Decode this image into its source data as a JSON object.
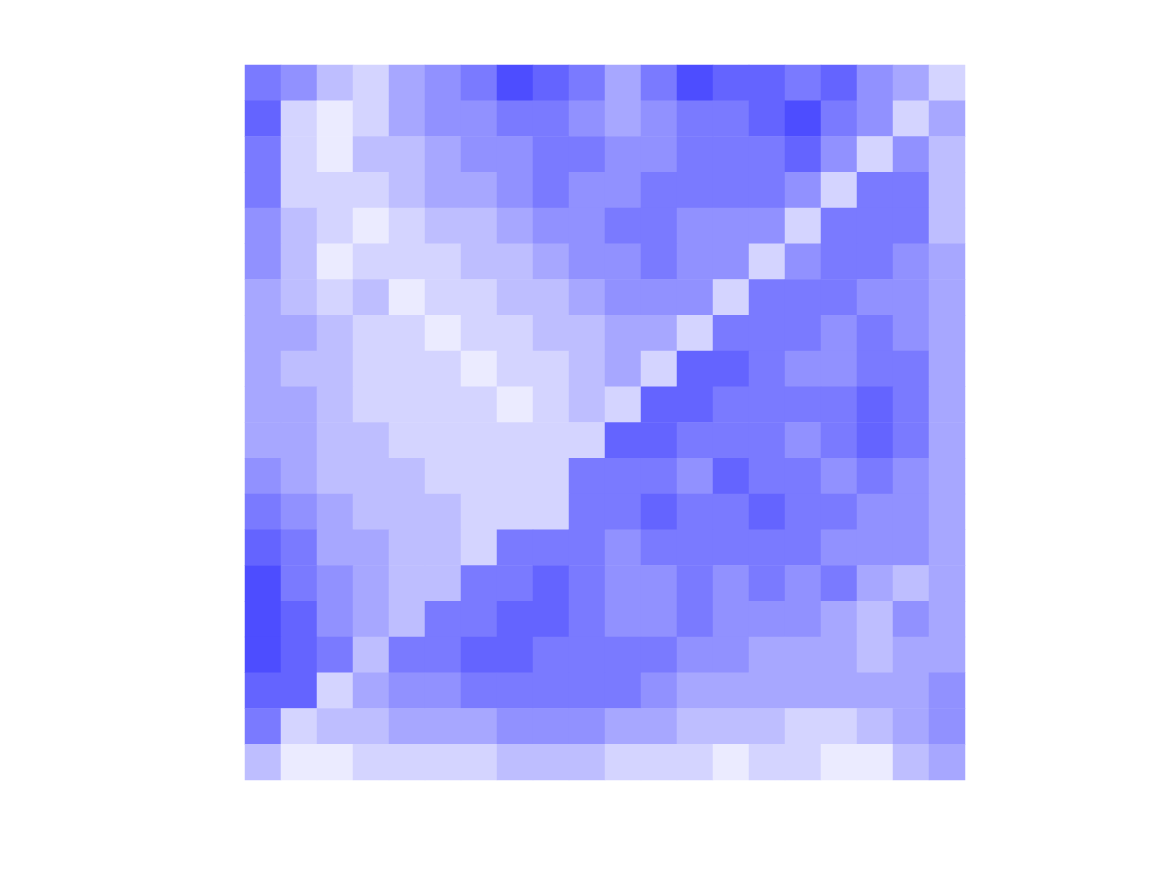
{
  "chart_data": {
    "type": "heatmap",
    "color": "#4d4dff",
    "tick_labels": false,
    "cells": [
      [
        6,
        5,
        3,
        2,
        4,
        5,
        6,
        8,
        7,
        6,
        4,
        6,
        8,
        7,
        7,
        6,
        7,
        5,
        4,
        2
      ],
      [
        7,
        2,
        1,
        2,
        4,
        5,
        5,
        6,
        6,
        5,
        4,
        5,
        6,
        6,
        7,
        8,
        6,
        5,
        2,
        4
      ],
      [
        6,
        2,
        1,
        3,
        3,
        4,
        5,
        5,
        6,
        6,
        5,
        5,
        6,
        6,
        6,
        7,
        5,
        2,
        5,
        3
      ],
      [
        6,
        2,
        2,
        2,
        3,
        4,
        4,
        5,
        6,
        5,
        5,
        6,
        6,
        6,
        6,
        5,
        2,
        6,
        6,
        3
      ],
      [
        5,
        3,
        2,
        1,
        2,
        3,
        3,
        4,
        5,
        5,
        6,
        6,
        5,
        5,
        5,
        2,
        6,
        6,
        6,
        3
      ],
      [
        5,
        3,
        1,
        2,
        2,
        2,
        3,
        3,
        4,
        5,
        5,
        6,
        5,
        5,
        2,
        5,
        6,
        6,
        5,
        4
      ],
      [
        4,
        3,
        2,
        3,
        1,
        2,
        2,
        3,
        3,
        4,
        5,
        5,
        5,
        2,
        6,
        6,
        6,
        5,
        5,
        4
      ],
      [
        4,
        4,
        3,
        2,
        2,
        1,
        2,
        2,
        3,
        3,
        4,
        4,
        2,
        6,
        6,
        6,
        5,
        6,
        5,
        4
      ],
      [
        4,
        3,
        3,
        2,
        2,
        2,
        1,
        2,
        2,
        3,
        4,
        2,
        7,
        7,
        6,
        5,
        5,
        6,
        6,
        4
      ],
      [
        4,
        4,
        3,
        2,
        2,
        2,
        2,
        1,
        2,
        3,
        2,
        7,
        7,
        6,
        6,
        6,
        6,
        7,
        6,
        4
      ],
      [
        4,
        4,
        3,
        3,
        2,
        2,
        2,
        2,
        2,
        2,
        7,
        7,
        6,
        6,
        6,
        5,
        6,
        7,
        6,
        4
      ],
      [
        5,
        4,
        3,
        3,
        3,
        2,
        2,
        2,
        2,
        6,
        6,
        6,
        5,
        7,
        6,
        6,
        5,
        6,
        5,
        4
      ],
      [
        6,
        5,
        4,
        3,
        3,
        3,
        2,
        2,
        2,
        6,
        6,
        7,
        6,
        6,
        7,
        6,
        6,
        5,
        5,
        4
      ],
      [
        7,
        6,
        4,
        4,
        3,
        3,
        2,
        6,
        6,
        6,
        5,
        6,
        6,
        6,
        6,
        6,
        5,
        5,
        5,
        4
      ],
      [
        8,
        6,
        5,
        4,
        3,
        3,
        6,
        6,
        7,
        6,
        5,
        5,
        6,
        5,
        6,
        5,
        6,
        4,
        3,
        4
      ],
      [
        8,
        7,
        5,
        4,
        3,
        6,
        6,
        7,
        7,
        6,
        5,
        5,
        6,
        5,
        5,
        5,
        4,
        3,
        5,
        4
      ],
      [
        8,
        7,
        6,
        3,
        6,
        6,
        7,
        7,
        6,
        6,
        6,
        6,
        5,
        5,
        4,
        4,
        4,
        3,
        4,
        4
      ],
      [
        7,
        7,
        2,
        4,
        5,
        5,
        6,
        6,
        6,
        6,
        6,
        5,
        4,
        4,
        4,
        4,
        4,
        4,
        4,
        5
      ],
      [
        6,
        2,
        3,
        3,
        4,
        4,
        4,
        5,
        5,
        5,
        4,
        4,
        3,
        3,
        3,
        2,
        2,
        3,
        4,
        5
      ],
      [
        3,
        1,
        1,
        2,
        2,
        2,
        2,
        3,
        3,
        3,
        2,
        2,
        2,
        1,
        2,
        2,
        1,
        1,
        3,
        4
      ]
    ]
  }
}
